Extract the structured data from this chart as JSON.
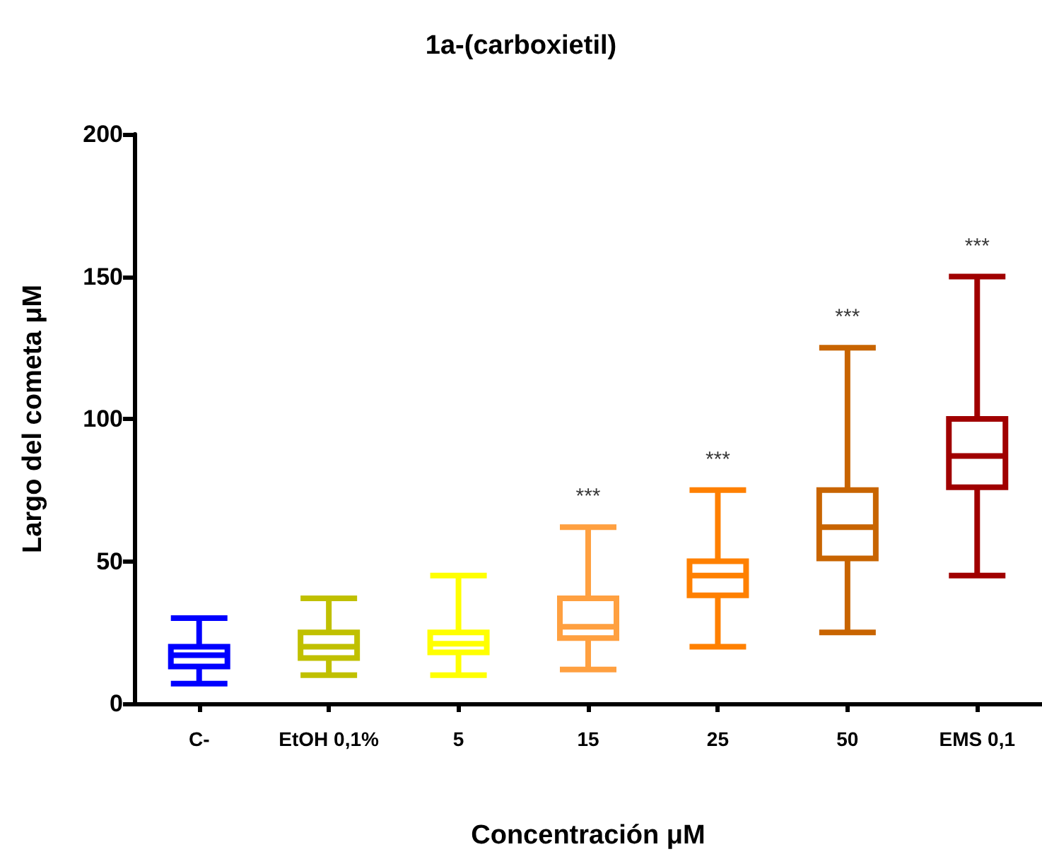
{
  "chart_data": {
    "type": "box",
    "title": "1a-(carboxietil)",
    "xlabel": "Concentración μM",
    "ylabel": "Largo del cometa μM",
    "categories": [
      "C-",
      "EtOH 0,1%",
      "5",
      "15",
      "25",
      "50",
      "EMS 0,1"
    ],
    "colors": [
      "#0000ff",
      "#c0c000",
      "#ffff00",
      "#ffa040",
      "#ff8000",
      "#c86400",
      "#a00000"
    ],
    "boxes": [
      {
        "low": 7,
        "q1": 13,
        "median": 17,
        "q3": 20,
        "high": 30
      },
      {
        "low": 10,
        "q1": 16,
        "median": 20,
        "q3": 25,
        "high": 37
      },
      {
        "low": 10,
        "q1": 18,
        "median": 21,
        "q3": 25,
        "high": 45
      },
      {
        "low": 12,
        "q1": 23,
        "median": 27,
        "q3": 37,
        "high": 62
      },
      {
        "low": 20,
        "q1": 38,
        "median": 45,
        "q3": 50,
        "high": 75
      },
      {
        "low": 25,
        "q1": 51,
        "median": 62,
        "q3": 75,
        "high": 125
      },
      {
        "low": 45,
        "q1": 76,
        "median": 87,
        "q3": 100,
        "high": 150
      }
    ],
    "annotations": [
      "***",
      "***",
      "***",
      "***"
    ],
    "ylim": [
      0,
      200
    ],
    "yticks": [
      0,
      50,
      100,
      150,
      200
    ],
    "grid": false
  }
}
